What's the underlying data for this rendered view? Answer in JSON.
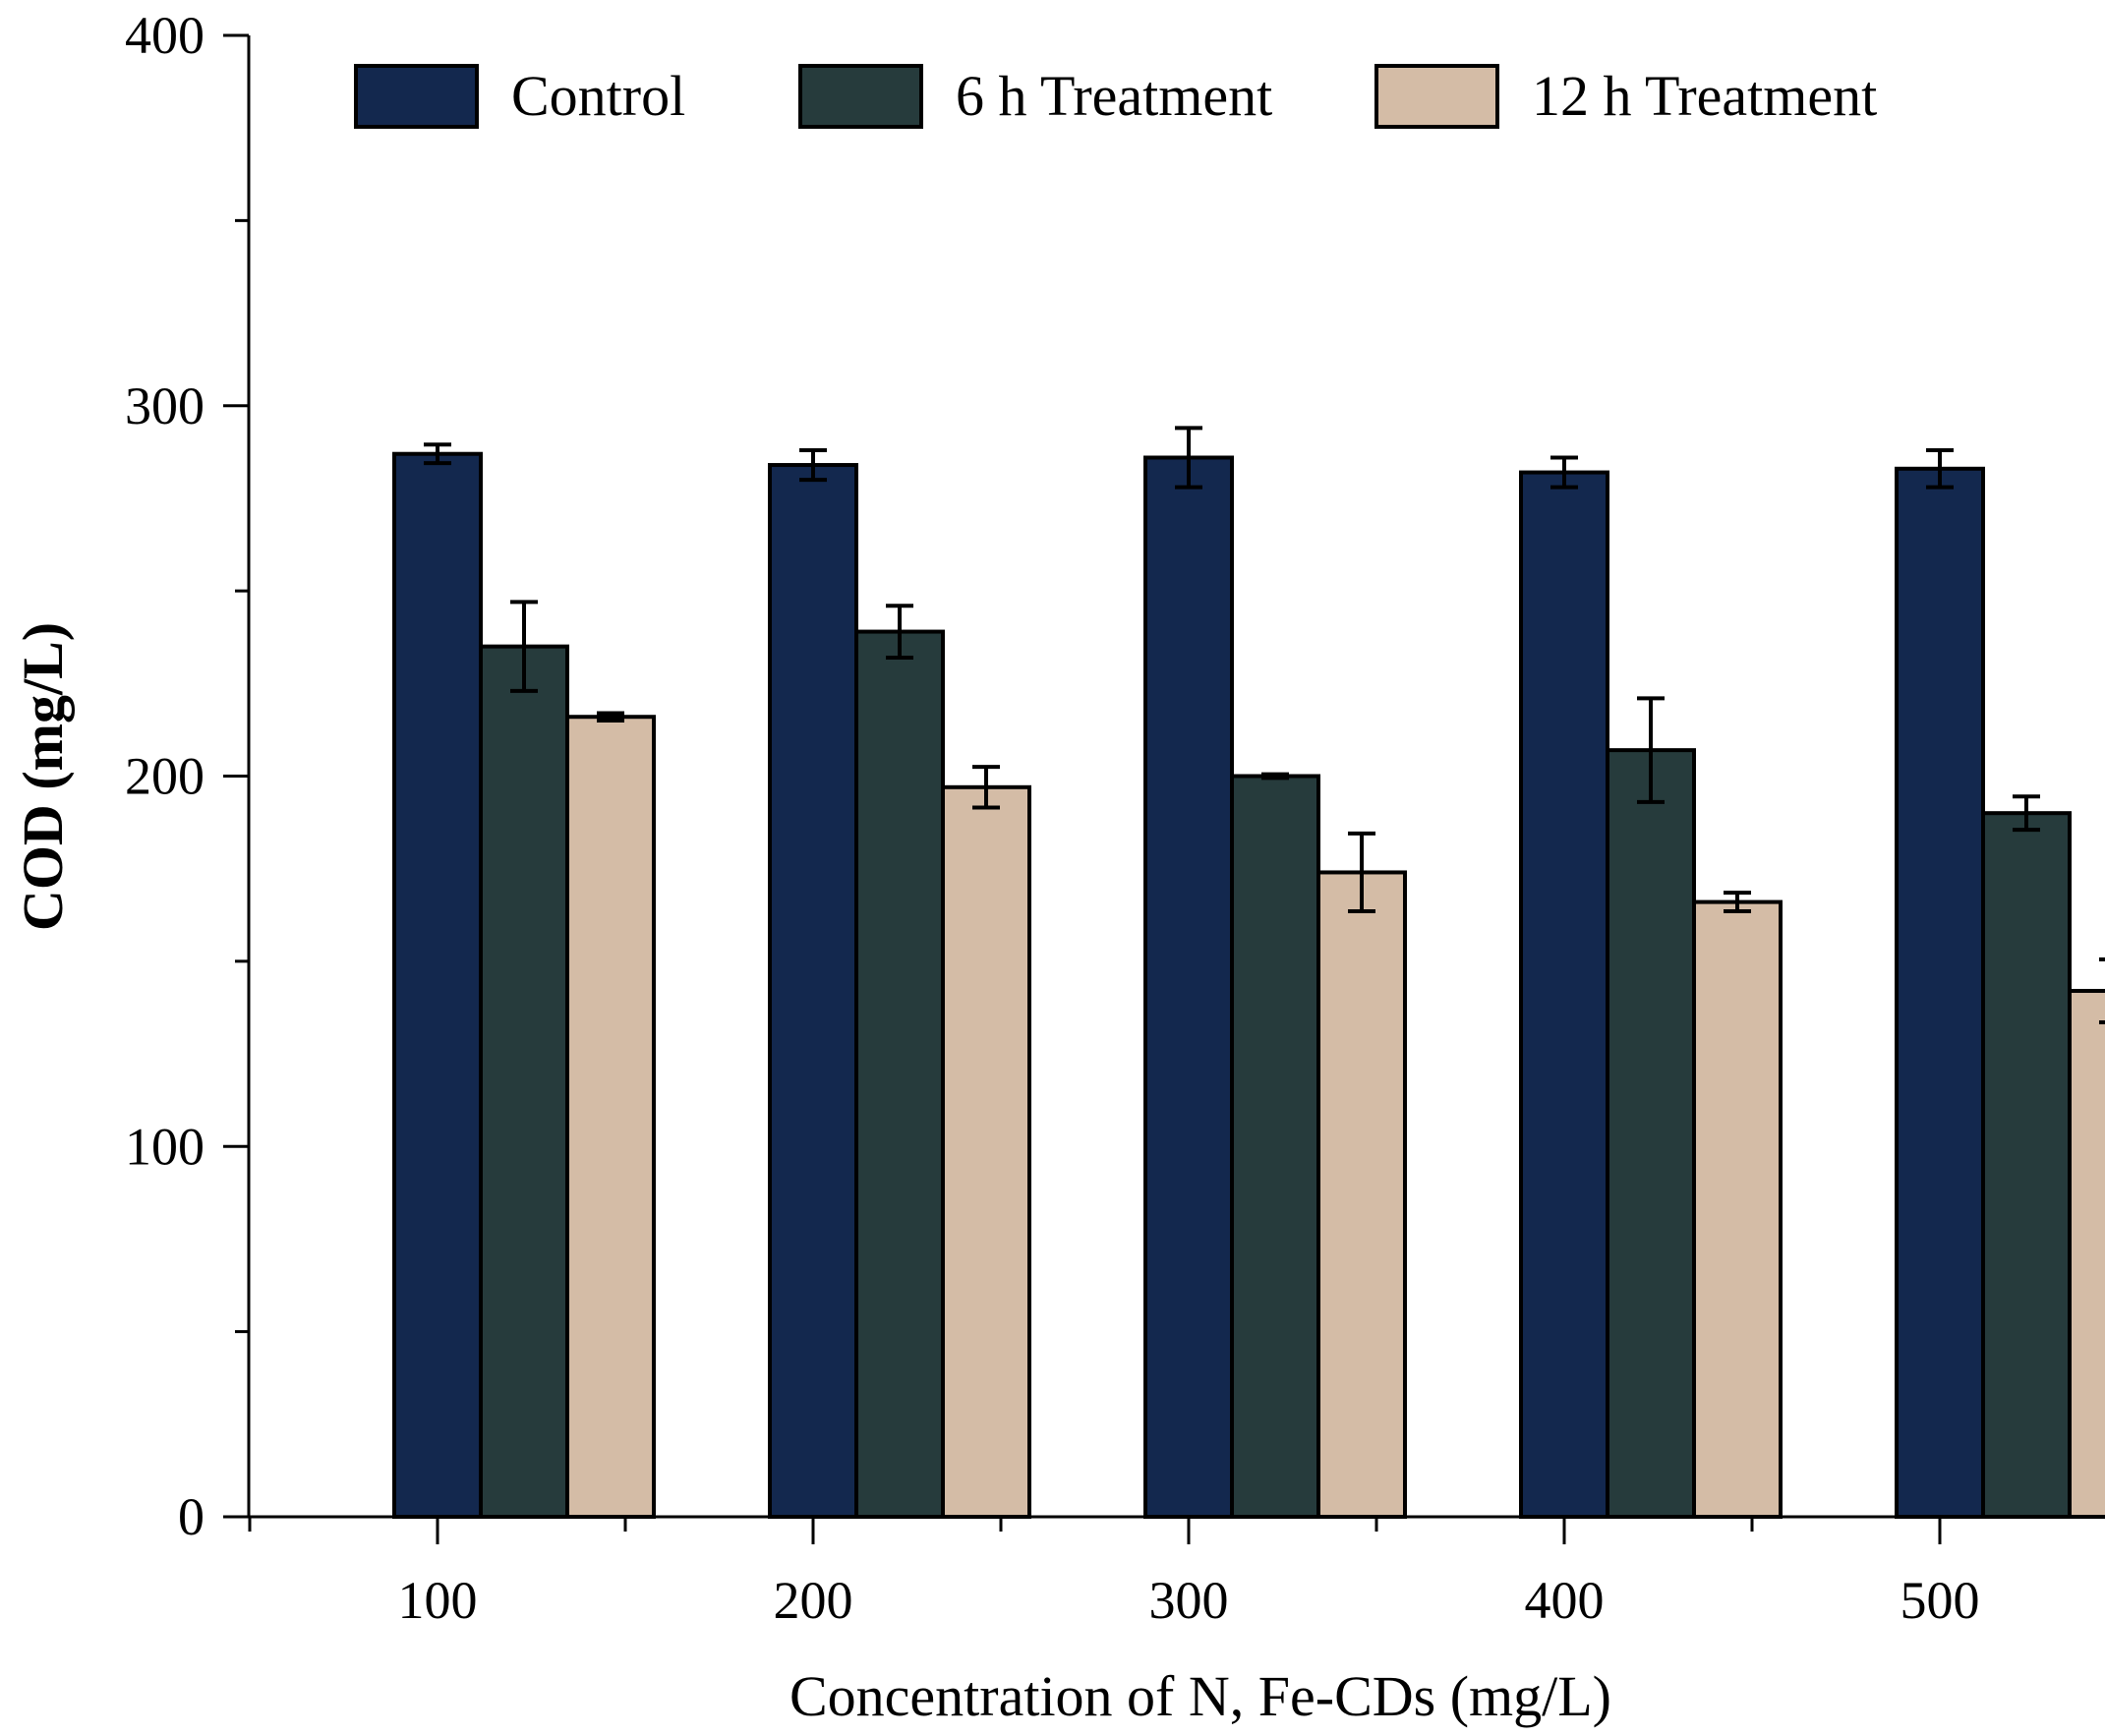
{
  "chart_data": {
    "type": "bar",
    "title": "",
    "xlabel": "Concentration of N, Fe-CDs (mg/L)",
    "ylabel": "COD (mg/L)",
    "categories": [
      "100",
      "200",
      "300",
      "400",
      "500"
    ],
    "ylim": [
      0,
      400
    ],
    "yticks": [
      0,
      100,
      200,
      300,
      400
    ],
    "yticks_minor": [
      50,
      150,
      250,
      350
    ],
    "legend_position": "top",
    "series": [
      {
        "name": "Control",
        "color": "#13284e",
        "values": [
          287,
          284,
          286,
          282,
          283
        ],
        "errors": [
          2.5,
          4,
          8,
          4,
          5
        ]
      },
      {
        "name": "6 h Treatment",
        "color": "#263b3c",
        "values": [
          235,
          239,
          200,
          207,
          190
        ],
        "errors": [
          12,
          7,
          0.5,
          14,
          4.5
        ]
      },
      {
        "name": "12 h Treatment",
        "color": "#d4bca6",
        "values": [
          216,
          197,
          174,
          166,
          142
        ],
        "errors": [
          1,
          5.5,
          10.5,
          2.5,
          8.5
        ]
      }
    ]
  }
}
